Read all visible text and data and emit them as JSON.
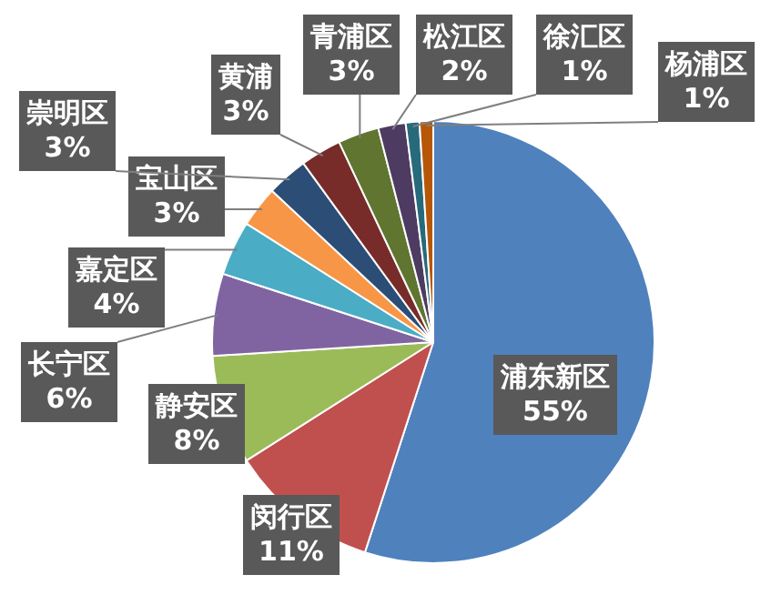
{
  "chart_data": {
    "type": "pie",
    "categories": [
      "浦东新区",
      "闵行区",
      "静安区",
      "长宁区",
      "嘉定区",
      "宝山区",
      "崇明区",
      "黄浦",
      "青浦区",
      "松江区",
      "徐汇区",
      "杨浦区"
    ],
    "values": [
      55,
      11,
      8,
      6,
      4,
      3,
      3,
      3,
      3,
      2,
      1,
      1
    ],
    "value_labels": [
      "55%",
      "11%",
      "8%",
      "6%",
      "4%",
      "3%",
      "3%",
      "3%",
      "3%",
      "2%",
      "1%",
      "1%"
    ],
    "colors": [
      "#4f81bd",
      "#c0504d",
      "#9bbb59",
      "#8064a2",
      "#4bacc6",
      "#f79646",
      "#2c4d75",
      "#772c2a",
      "#5f7530",
      "#4d3b62",
      "#276a7c",
      "#b65708"
    ]
  }
}
